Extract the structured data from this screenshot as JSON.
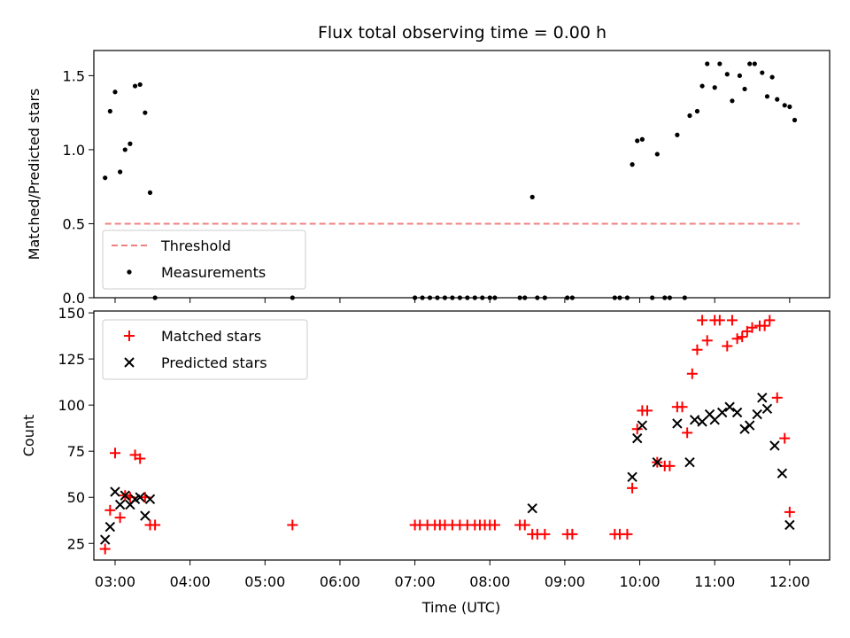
{
  "title": "Flux total observing time = 0.00 h",
  "xlabel": "Time (UTC)",
  "colors": {
    "threshold": "#f08080",
    "measurements": "#000000",
    "matched": "#ff0000",
    "predicted": "#000000"
  },
  "chart_data": [
    {
      "type": "scatter",
      "ylabel": "Matched/Predicted stars",
      "xlim": [
        "02:43",
        "12:32"
      ],
      "ylim": [
        0,
        1.67
      ],
      "yticks": [
        "0.0",
        "0.5",
        "1.0",
        "1.5"
      ],
      "xticks": [
        "03:00",
        "04:00",
        "05:00",
        "06:00",
        "07:00",
        "08:00",
        "09:00",
        "10:00",
        "11:00",
        "12:00"
      ],
      "legend": {
        "placement": "lower-left",
        "entries": [
          "Threshold",
          "Measurements"
        ]
      },
      "series": [
        {
          "name": "Threshold",
          "kind": "line",
          "style": "dashed",
          "x": [
            "02:52",
            "12:08"
          ],
          "y": [
            0.5,
            0.5
          ]
        },
        {
          "name": "Measurements",
          "kind": "scatter",
          "points": [
            [
              "02:52",
              0.81
            ],
            [
              "02:56",
              1.26
            ],
            [
              "03:00",
              1.39
            ],
            [
              "03:04",
              0.85
            ],
            [
              "03:08",
              1.0
            ],
            [
              "03:12",
              1.04
            ],
            [
              "03:16",
              1.43
            ],
            [
              "03:20",
              1.44
            ],
            [
              "03:24",
              1.25
            ],
            [
              "03:28",
              0.71
            ],
            [
              "03:32",
              0.0
            ],
            [
              "05:22",
              0.0
            ],
            [
              "07:00",
              0.0
            ],
            [
              "07:06",
              0.0
            ],
            [
              "07:12",
              0.0
            ],
            [
              "07:18",
              0.0
            ],
            [
              "07:24",
              0.0
            ],
            [
              "07:30",
              0.0
            ],
            [
              "07:36",
              0.0
            ],
            [
              "07:42",
              0.0
            ],
            [
              "07:48",
              0.0
            ],
            [
              "07:54",
              0.0
            ],
            [
              "08:00",
              0.0
            ],
            [
              "08:04",
              0.0
            ],
            [
              "08:24",
              0.0
            ],
            [
              "08:28",
              0.0
            ],
            [
              "08:34",
              0.68
            ],
            [
              "08:38",
              0.0
            ],
            [
              "08:44",
              0.0
            ],
            [
              "09:02",
              0.0
            ],
            [
              "09:06",
              0.0
            ],
            [
              "09:40",
              0.0
            ],
            [
              "09:44",
              0.0
            ],
            [
              "09:50",
              0.0
            ],
            [
              "09:54",
              0.9
            ],
            [
              "09:58",
              1.06
            ],
            [
              "10:02",
              1.07
            ],
            [
              "10:10",
              0.0
            ],
            [
              "10:14",
              0.97
            ],
            [
              "10:20",
              0.0
            ],
            [
              "10:24",
              0.0
            ],
            [
              "10:30",
              1.1
            ],
            [
              "10:36",
              0.0
            ],
            [
              "10:40",
              1.23
            ],
            [
              "10:46",
              1.26
            ],
            [
              "10:50",
              1.43
            ],
            [
              "10:54",
              1.58
            ],
            [
              "11:00",
              1.42
            ],
            [
              "11:04",
              1.58
            ],
            [
              "11:10",
              1.51
            ],
            [
              "11:14",
              1.33
            ],
            [
              "11:20",
              1.5
            ],
            [
              "11:24",
              1.41
            ],
            [
              "11:28",
              1.58
            ],
            [
              "11:32",
              1.58
            ],
            [
              "11:38",
              1.52
            ],
            [
              "11:42",
              1.36
            ],
            [
              "11:46",
              1.49
            ],
            [
              "11:50",
              1.34
            ],
            [
              "11:56",
              1.3
            ],
            [
              "12:00",
              1.29
            ],
            [
              "12:04",
              1.2
            ]
          ]
        }
      ]
    },
    {
      "type": "scatter",
      "ylabel": "Count",
      "xlabel": "Time (UTC)",
      "xlim": [
        "02:43",
        "12:32"
      ],
      "ylim": [
        16,
        151
      ],
      "yticks": [
        "25",
        "50",
        "75",
        "100",
        "125",
        "150"
      ],
      "xticks": [
        "03:00",
        "04:00",
        "05:00",
        "06:00",
        "07:00",
        "08:00",
        "09:00",
        "10:00",
        "11:00",
        "12:00"
      ],
      "legend": {
        "placement": "upper-left",
        "entries": [
          "Matched stars",
          "Predicted stars"
        ]
      },
      "series": [
        {
          "name": "Matched stars",
          "marker": "plus",
          "points": [
            [
              "02:52",
              22
            ],
            [
              "02:56",
              43
            ],
            [
              "03:00",
              74
            ],
            [
              "03:04",
              39
            ],
            [
              "03:08",
              51
            ],
            [
              "03:12",
              50
            ],
            [
              "03:16",
              73
            ],
            [
              "03:20",
              71
            ],
            [
              "03:24",
              50
            ],
            [
              "03:28",
              35
            ],
            [
              "03:32",
              35
            ],
            [
              "05:22",
              35
            ],
            [
              "07:00",
              35
            ],
            [
              "07:04",
              35
            ],
            [
              "07:10",
              35
            ],
            [
              "07:16",
              35
            ],
            [
              "07:20",
              35
            ],
            [
              "07:24",
              35
            ],
            [
              "07:30",
              35
            ],
            [
              "07:36",
              35
            ],
            [
              "07:42",
              35
            ],
            [
              "07:48",
              35
            ],
            [
              "07:52",
              35
            ],
            [
              "07:56",
              35
            ],
            [
              "08:00",
              35
            ],
            [
              "08:04",
              35
            ],
            [
              "08:24",
              35
            ],
            [
              "08:28",
              35
            ],
            [
              "08:34",
              30
            ],
            [
              "08:38",
              30
            ],
            [
              "08:44",
              30
            ],
            [
              "09:02",
              30
            ],
            [
              "09:06",
              30
            ],
            [
              "09:40",
              30
            ],
            [
              "09:44",
              30
            ],
            [
              "09:50",
              30
            ],
            [
              "09:54",
              55
            ],
            [
              "09:58",
              87
            ],
            [
              "10:02",
              97
            ],
            [
              "10:06",
              97
            ],
            [
              "10:14",
              69
            ],
            [
              "10:20",
              67
            ],
            [
              "10:24",
              67
            ],
            [
              "10:30",
              99
            ],
            [
              "10:34",
              99
            ],
            [
              "10:38",
              85
            ],
            [
              "10:42",
              117
            ],
            [
              "10:46",
              130
            ],
            [
              "10:50",
              146
            ],
            [
              "10:54",
              135
            ],
            [
              "11:00",
              146
            ],
            [
              "11:04",
              146
            ],
            [
              "11:10",
              132
            ],
            [
              "11:14",
              146
            ],
            [
              "11:18",
              136
            ],
            [
              "11:22",
              137
            ],
            [
              "11:26",
              140
            ],
            [
              "11:30",
              142
            ],
            [
              "11:36",
              143
            ],
            [
              "11:40",
              143
            ],
            [
              "11:44",
              146
            ],
            [
              "11:50",
              104
            ],
            [
              "11:56",
              82
            ],
            [
              "12:00",
              42
            ]
          ]
        },
        {
          "name": "Predicted stars",
          "marker": "x",
          "points": [
            [
              "02:52",
              27
            ],
            [
              "02:56",
              34
            ],
            [
              "03:00",
              53
            ],
            [
              "03:04",
              46
            ],
            [
              "03:08",
              51
            ],
            [
              "03:12",
              46
            ],
            [
              "03:16",
              49
            ],
            [
              "03:20",
              50
            ],
            [
              "03:24",
              40
            ],
            [
              "03:28",
              49
            ],
            [
              "08:34",
              44
            ],
            [
              "09:54",
              61
            ],
            [
              "09:58",
              82
            ],
            [
              "10:02",
              89
            ],
            [
              "10:14",
              69
            ],
            [
              "10:30",
              90
            ],
            [
              "10:40",
              69
            ],
            [
              "10:44",
              92
            ],
            [
              "10:50",
              91
            ],
            [
              "10:56",
              95
            ],
            [
              "11:00",
              92
            ],
            [
              "11:06",
              96
            ],
            [
              "11:12",
              99
            ],
            [
              "11:18",
              96
            ],
            [
              "11:24",
              87
            ],
            [
              "11:28",
              89
            ],
            [
              "11:34",
              95
            ],
            [
              "11:38",
              104
            ],
            [
              "11:42",
              98
            ],
            [
              "11:48",
              78
            ],
            [
              "11:54",
              63
            ],
            [
              "12:00",
              35
            ]
          ]
        }
      ]
    }
  ]
}
